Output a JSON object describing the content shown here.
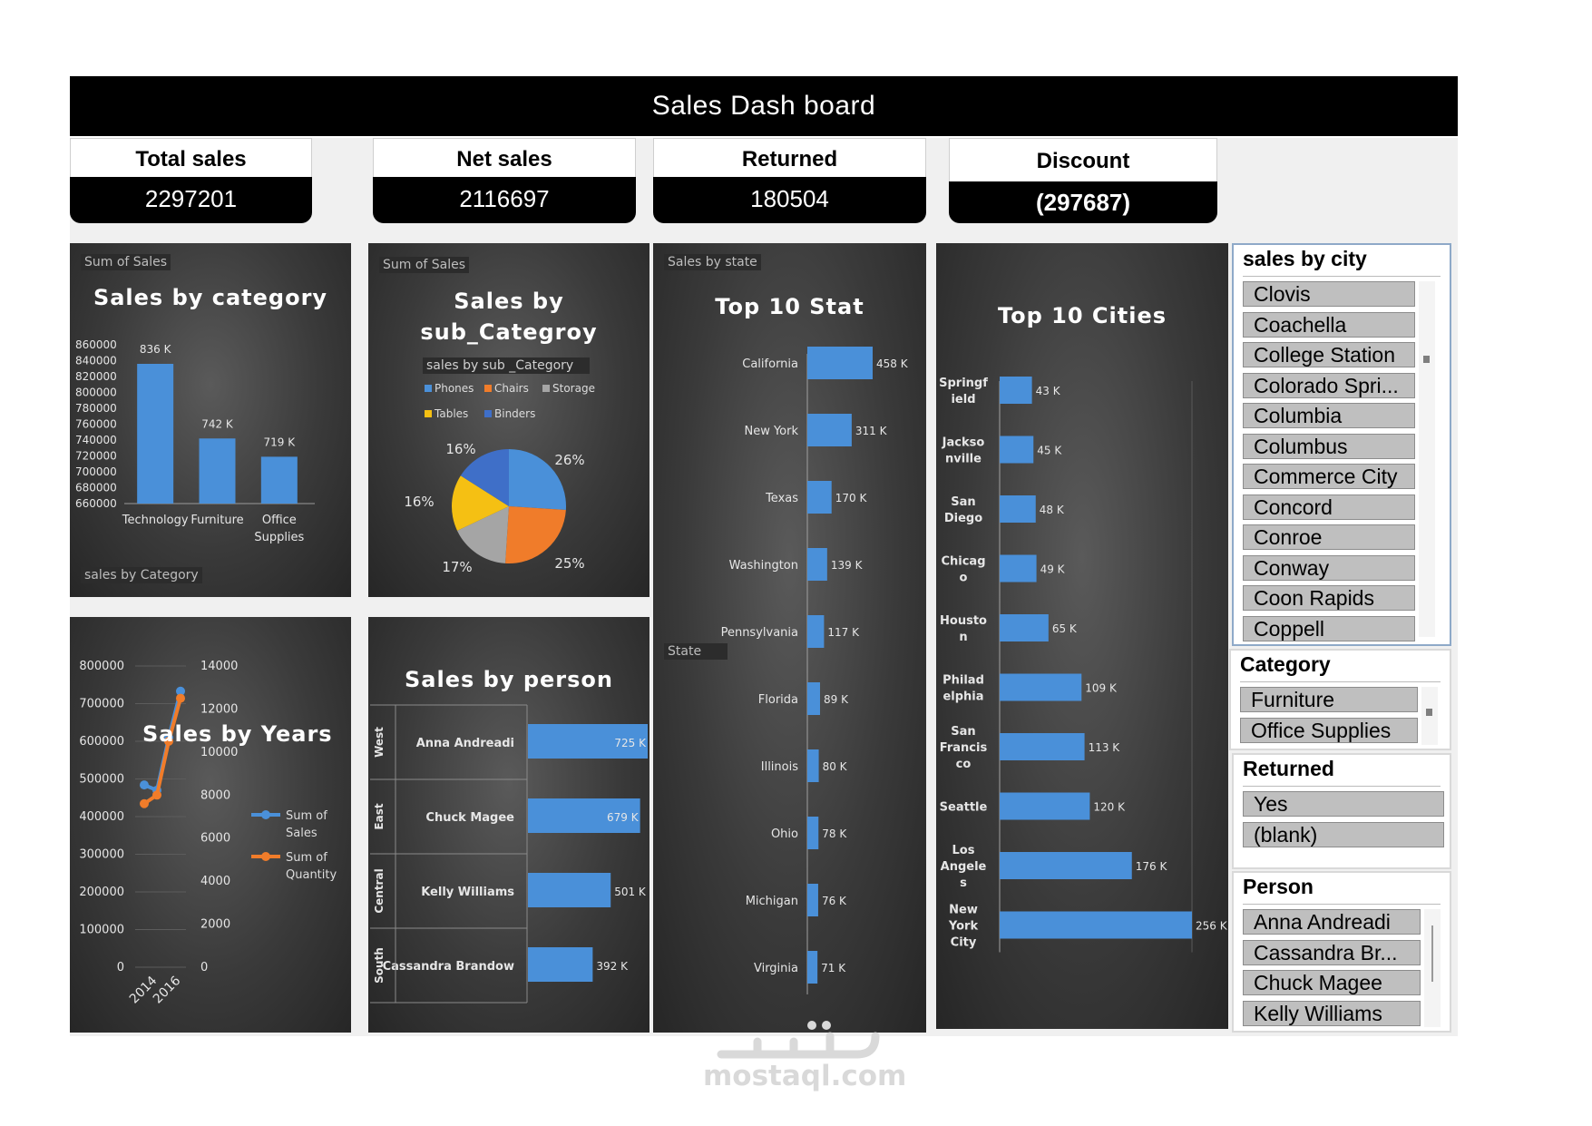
{
  "header": {
    "title": "Sales Dash board"
  },
  "kpis": {
    "total": {
      "label": "Total sales",
      "value": "2297201"
    },
    "net": {
      "label": "Net sales",
      "value": "2116697"
    },
    "returned": {
      "label": "Returned",
      "value": "180504"
    },
    "discount": {
      "label": "Discount",
      "value": "(297687)"
    }
  },
  "panels": {
    "category": {
      "tag": "Sum of Sales",
      "title": "Sales by category",
      "axis_tag": "sales by Category"
    },
    "subcategory": {
      "tag": "Sum of Sales",
      "title_line1": "Sales by",
      "title_line2": "sub_Categroy",
      "legend_title": "sales by sub _Category"
    },
    "state": {
      "tag": "Sales by state",
      "title": "Top 10 Stat",
      "axis_tag": "State"
    },
    "cities": {
      "title": "Top 10 Cities"
    },
    "years": {
      "title": "Sales by Years"
    },
    "person": {
      "title": "Sales by person"
    }
  },
  "chart_data": [
    {
      "id": "category",
      "type": "bar",
      "title": "Sales by category",
      "categories": [
        "Technology",
        "Furniture",
        "Office Supplies"
      ],
      "values": [
        836000,
        742000,
        719000
      ],
      "labels": [
        "836 K",
        "742 K",
        "719 K"
      ],
      "ylim": [
        660000,
        860000
      ],
      "yticks": [
        "860000",
        "840000",
        "820000",
        "800000",
        "780000",
        "760000",
        "740000",
        "720000",
        "700000",
        "680000",
        "660000"
      ]
    },
    {
      "id": "subcategory",
      "type": "pie",
      "title": "Sales by sub_Categroy",
      "slices": [
        {
          "name": "Phones",
          "percent": 26,
          "label": "26%",
          "color": "#4a90d9"
        },
        {
          "name": "Chairs",
          "percent": 25,
          "label": "25%",
          "color": "#f07c2a"
        },
        {
          "name": "Storage",
          "percent": 17,
          "label": "17%",
          "color": "#a5a5a5"
        },
        {
          "name": "Tables",
          "percent": 16,
          "label": "16%",
          "color": "#f5c013"
        },
        {
          "name": "Binders",
          "percent": 16,
          "label": "16%",
          "color": "#3f6fc8"
        }
      ]
    },
    {
      "id": "state",
      "type": "bar",
      "title": "Top 10 Stat",
      "categories": [
        "California",
        "New York",
        "Texas",
        "Washington",
        "Pennsylvania",
        "Florida",
        "Illinois",
        "Ohio",
        "Michigan",
        "Virginia"
      ],
      "values": [
        458,
        311,
        170,
        139,
        117,
        89,
        80,
        78,
        76,
        71
      ],
      "labels": [
        "458 K",
        "311 K",
        "170 K",
        "139 K",
        "117 K",
        "89 K",
        "80 K",
        "78 K",
        "76 K",
        "71 K"
      ]
    },
    {
      "id": "cities",
      "type": "bar",
      "title": "Top 10 Cities",
      "categories": [
        "Springf ield",
        "Jackso nville",
        "San Diego",
        "Chicag o",
        "Housto n",
        "Philad elphia",
        "San Francis co",
        "Seattle",
        "Los Angele s",
        "New York City"
      ],
      "values": [
        43,
        45,
        48,
        49,
        65,
        109,
        113,
        120,
        176,
        256
      ],
      "labels": [
        "43 K",
        "45 K",
        "48 K",
        "49 K",
        "65 K",
        "109 K",
        "113 K",
        "120 K",
        "176 K",
        "256 K"
      ]
    },
    {
      "id": "years",
      "type": "line",
      "title": "Sales by Years",
      "x": [
        "2014",
        "2015",
        "2016",
        "2017"
      ],
      "xticks": [
        "2014",
        "2016"
      ],
      "series": [
        {
          "name": "Sum of Sales",
          "axis": "left",
          "values": [
            484000,
            470000,
            609000,
            733000
          ],
          "color": "#4a90d9"
        },
        {
          "name": "Sum of Quantity",
          "axis": "right",
          "values": [
            7600,
            8000,
            10500,
            12500
          ],
          "color": "#f07c2a"
        }
      ],
      "ylim_left": [
        0,
        800000
      ],
      "yticks_left": [
        "800000",
        "700000",
        "600000",
        "500000",
        "400000",
        "300000",
        "200000",
        "100000",
        "0"
      ],
      "ylim_right": [
        0,
        14000
      ],
      "yticks_right": [
        "14000",
        "12000",
        "10000",
        "8000",
        "6000",
        "4000",
        "2000",
        "0"
      ],
      "legend": [
        {
          "line1": "Sum of",
          "line2": "Sales"
        },
        {
          "line1": "Sum of",
          "line2": "Quantity"
        }
      ]
    },
    {
      "id": "person",
      "type": "bar",
      "title": "Sales by person",
      "rows": [
        {
          "region": "West",
          "name": "Anna Andreadi",
          "value": 725,
          "label": "725 K"
        },
        {
          "region": "East",
          "name": "Chuck Magee",
          "value": 679,
          "label": "679 K"
        },
        {
          "region": "Central",
          "name": "Kelly Williams",
          "value": 501,
          "label": "501 K"
        },
        {
          "region": "South",
          "name": "Cassandra Brandow",
          "value": 392,
          "label": "392 K"
        }
      ]
    }
  ],
  "slicers": {
    "city": {
      "title": "sales by city",
      "items": [
        "Clovis",
        "Coachella",
        "College Station",
        "Colorado Spri...",
        "Columbia",
        "Columbus",
        "Commerce City",
        "Concord",
        "Conroe",
        "Conway",
        "Coon Rapids",
        "Coppell"
      ]
    },
    "category": {
      "title": "Category",
      "items": [
        "Furniture",
        "Office Supplies"
      ]
    },
    "returned": {
      "title": "Returned",
      "items": [
        "Yes",
        "(blank)"
      ]
    },
    "person": {
      "title": "Person",
      "items": [
        "Anna Andreadi",
        "Cassandra Br...",
        "Chuck Magee",
        "Kelly Williams"
      ]
    }
  },
  "watermark": {
    "text": "mostaql.com"
  }
}
